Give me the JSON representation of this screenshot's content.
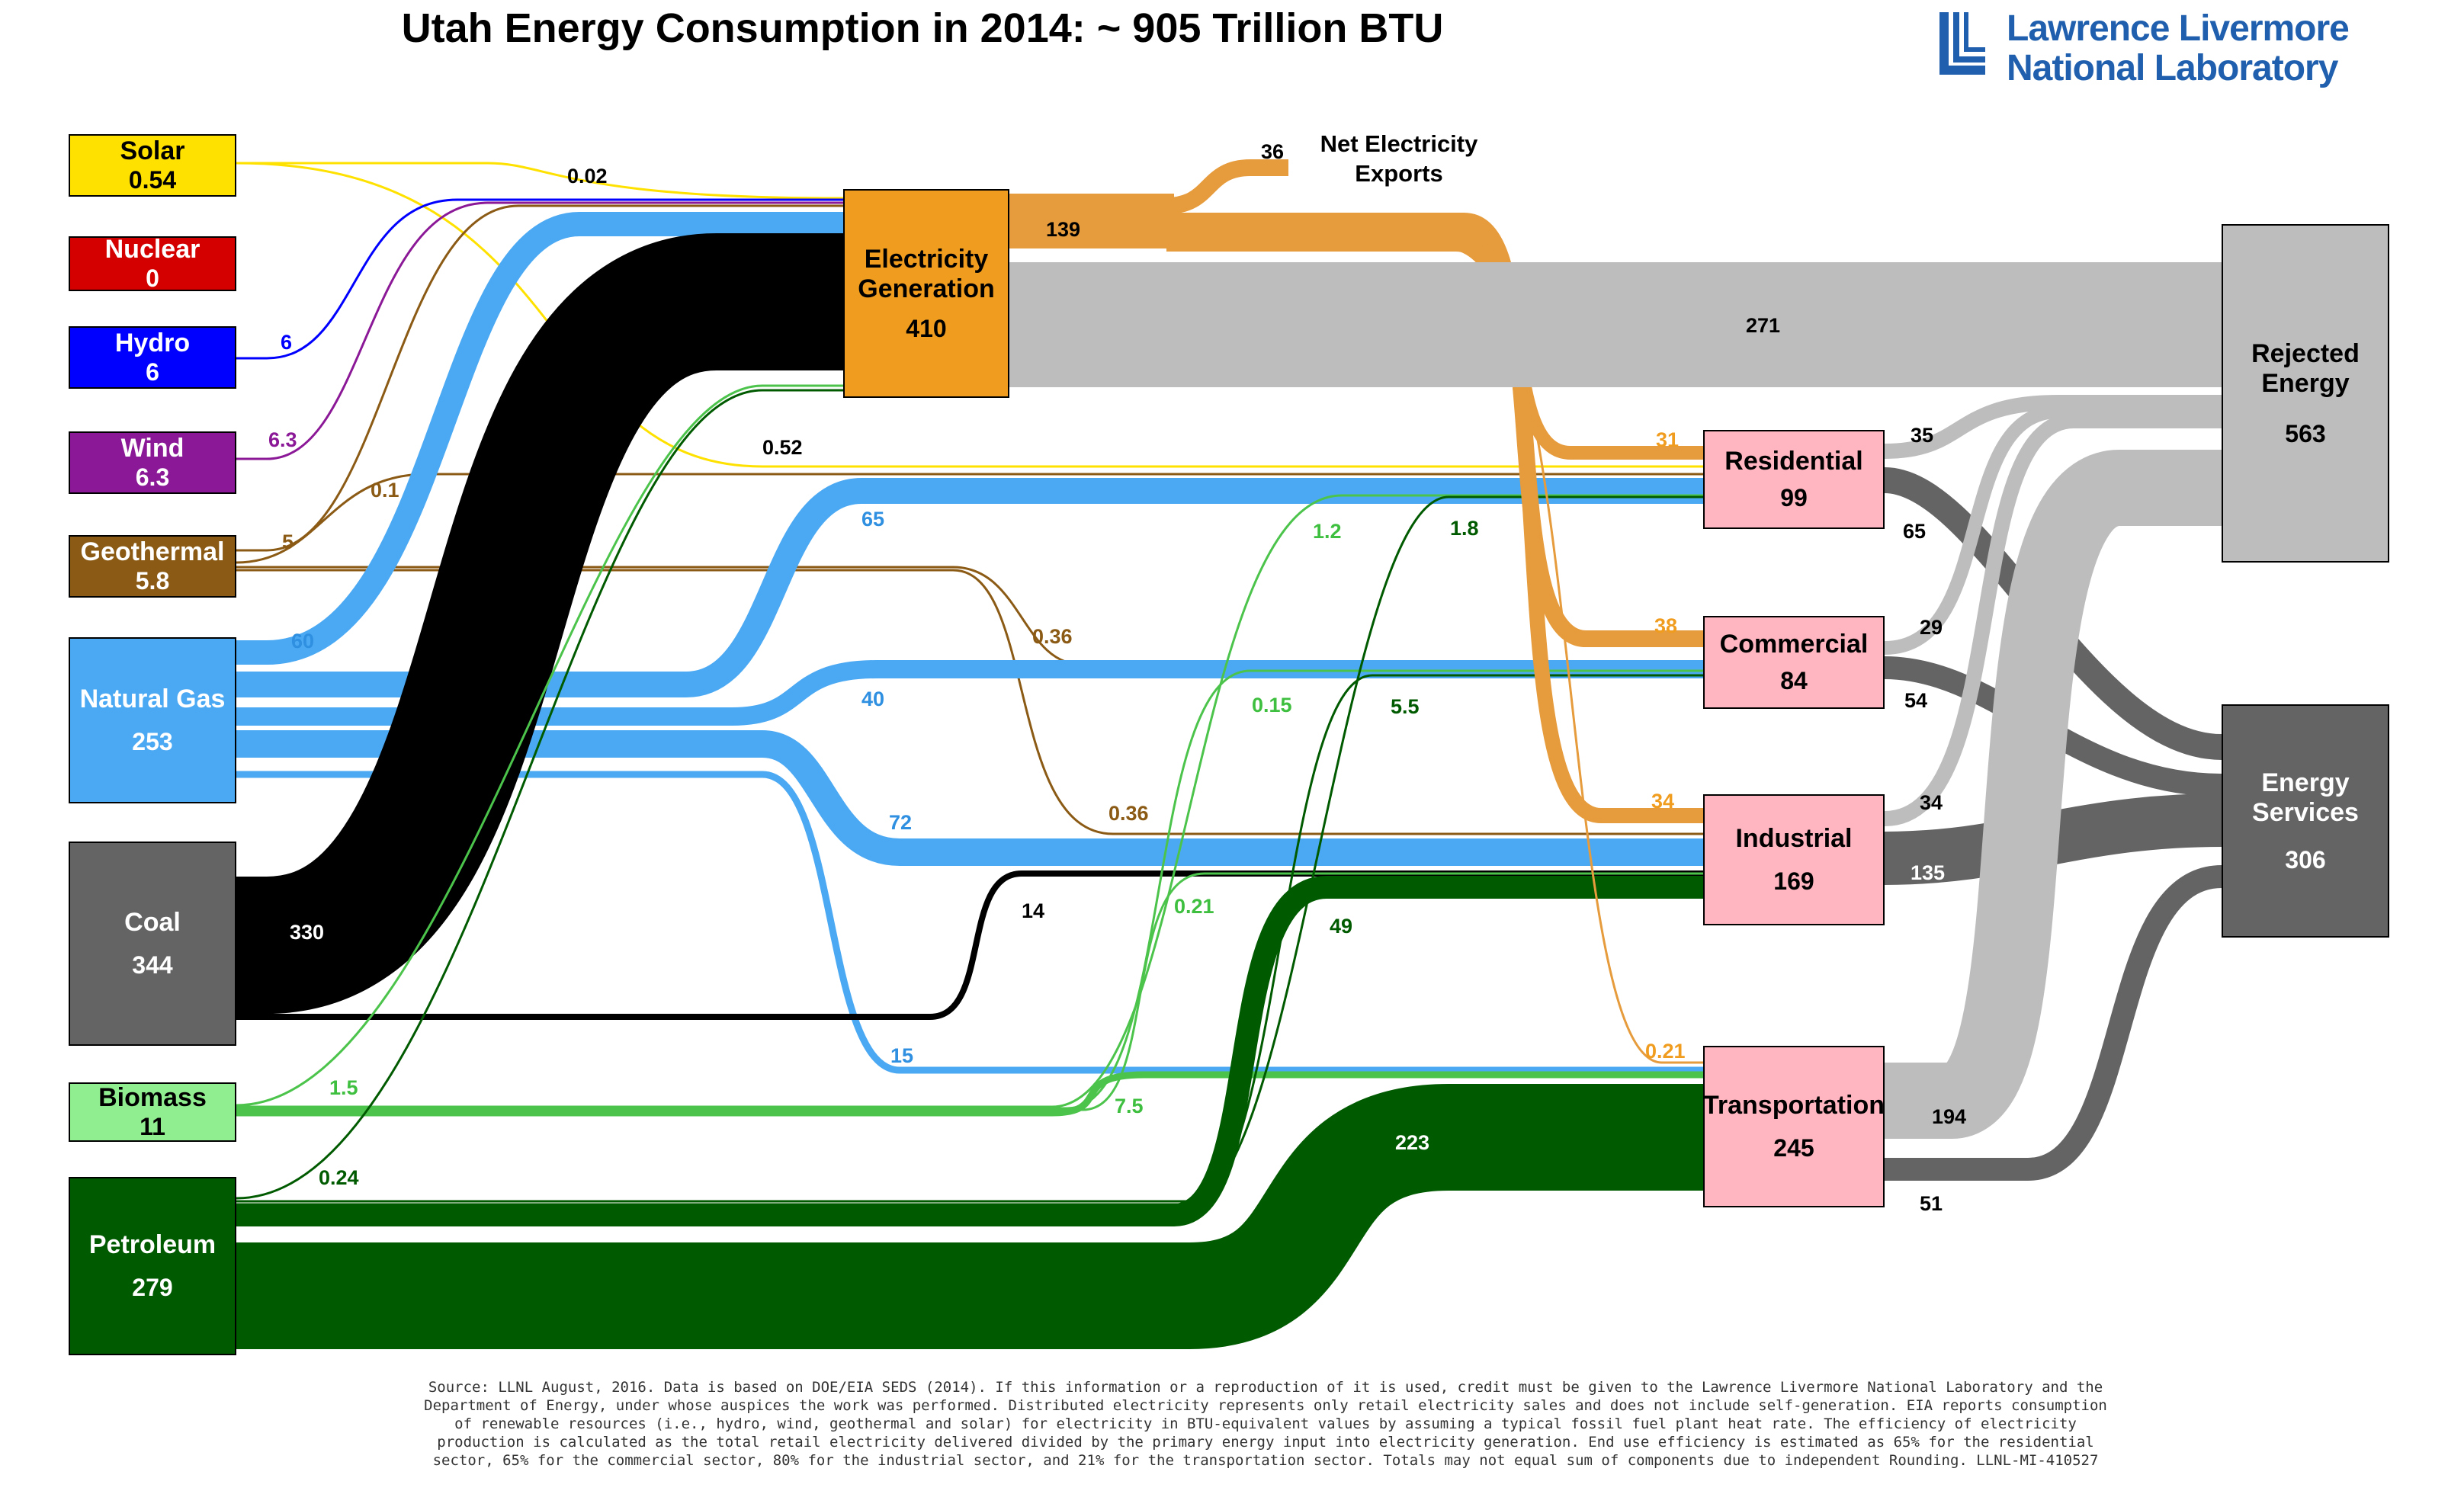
{
  "title": "Utah Energy Consumption in 2014: ~ 905 Trillion BTU",
  "logo": {
    "line1": "Lawrence Livermore",
    "line2": "National Laboratory",
    "color": "#1f5fae"
  },
  "sources": [
    {
      "id": "solar",
      "name": "Solar",
      "value": "0.54",
      "color": "#ffe100"
    },
    {
      "id": "nuclear",
      "name": "Nuclear",
      "value": "0",
      "color": "#d40000"
    },
    {
      "id": "hydro",
      "name": "Hydro",
      "value": "6",
      "color": "#0000ff"
    },
    {
      "id": "wind",
      "name": "Wind",
      "value": "6.3",
      "color": "#8b1896"
    },
    {
      "id": "geothermal",
      "name": "Geothermal",
      "value": "5.8",
      "color": "#8b5a14"
    },
    {
      "id": "natural-gas",
      "name": "Natural Gas",
      "value": "253",
      "color": "#4ba9f3"
    },
    {
      "id": "coal",
      "name": "Coal",
      "value": "344",
      "color": "#646464"
    },
    {
      "id": "biomass",
      "name": "Biomass",
      "value": "11",
      "color": "#90ee90"
    },
    {
      "id": "petroleum",
      "name": "Petroleum",
      "value": "279",
      "color": "#005a00"
    }
  ],
  "electricity": {
    "name": "Electricity Generation",
    "value": "410",
    "color": "#f09c1e"
  },
  "sectors": [
    {
      "id": "residential",
      "name": "Residential",
      "value": "99"
    },
    {
      "id": "commercial",
      "name": "Commercial",
      "value": "84"
    },
    {
      "id": "industrial",
      "name": "Industrial",
      "value": "169"
    },
    {
      "id": "transportation",
      "name": "Transportation",
      "value": "245"
    }
  ],
  "outputs": [
    {
      "id": "rejected",
      "name": "Rejected Energy",
      "value": "563",
      "color": "#bdbdbd"
    },
    {
      "id": "services",
      "name": "Energy Services",
      "value": "306",
      "color": "#646464"
    }
  ],
  "net_exports": {
    "label": "Net Electricity Exports",
    "value": "36"
  },
  "flows": [
    {
      "from": "Solar",
      "to": "Electricity Generation",
      "value": 0.02
    },
    {
      "from": "Solar",
      "to": "Residential",
      "value": 0.52
    },
    {
      "from": "Hydro",
      "to": "Electricity Generation",
      "value": 6
    },
    {
      "from": "Wind",
      "to": "Electricity Generation",
      "value": 6.3
    },
    {
      "from": "Geothermal",
      "to": "Electricity Generation",
      "value": 5
    },
    {
      "from": "Geothermal",
      "to": "Residential",
      "value": 0.1
    },
    {
      "from": "Geothermal",
      "to": "Commercial",
      "value": 0.36
    },
    {
      "from": "Geothermal",
      "to": "Industrial",
      "value": 0.36
    },
    {
      "from": "Natural Gas",
      "to": "Electricity Generation",
      "value": 60
    },
    {
      "from": "Natural Gas",
      "to": "Residential",
      "value": 65
    },
    {
      "from": "Natural Gas",
      "to": "Commercial",
      "value": 40
    },
    {
      "from": "Natural Gas",
      "to": "Industrial",
      "value": 72
    },
    {
      "from": "Natural Gas",
      "to": "Transportation",
      "value": 15
    },
    {
      "from": "Coal",
      "to": "Electricity Generation",
      "value": 330
    },
    {
      "from": "Coal",
      "to": "Industrial",
      "value": 14
    },
    {
      "from": "Biomass",
      "to": "Electricity Generation",
      "value": 1.5
    },
    {
      "from": "Biomass",
      "to": "Residential",
      "value": 1.2
    },
    {
      "from": "Biomass",
      "to": "Commercial",
      "value": 0.15
    },
    {
      "from": "Biomass",
      "to": "Industrial",
      "value": 0.21
    },
    {
      "from": "Biomass",
      "to": "Transportation",
      "value": 7.5
    },
    {
      "from": "Petroleum",
      "to": "Electricity Generation",
      "value": 0.24
    },
    {
      "from": "Petroleum",
      "to": "Residential",
      "value": 1.8
    },
    {
      "from": "Petroleum",
      "to": "Commercial",
      "value": 5.5
    },
    {
      "from": "Petroleum",
      "to": "Industrial",
      "value": 49
    },
    {
      "from": "Petroleum",
      "to": "Transportation",
      "value": 223
    },
    {
      "from": "Electricity Generation",
      "to": "Net Electricity Exports",
      "value": 36
    },
    {
      "from": "Electricity Generation",
      "to": "Residential",
      "value": 31
    },
    {
      "from": "Electricity Generation",
      "to": "Commercial",
      "value": 38
    },
    {
      "from": "Electricity Generation",
      "to": "Industrial",
      "value": 34
    },
    {
      "from": "Electricity Generation",
      "to": "Transportation",
      "value": 0.21
    },
    {
      "from": "Electricity Generation",
      "to": "Rejected Energy",
      "value": 271
    },
    {
      "from": "Residential",
      "to": "Rejected Energy",
      "value": 35
    },
    {
      "from": "Residential",
      "to": "Energy Services",
      "value": 65
    },
    {
      "from": "Commercial",
      "to": "Rejected Energy",
      "value": 29
    },
    {
      "from": "Commercial",
      "to": "Energy Services",
      "value": 54
    },
    {
      "from": "Industrial",
      "to": "Rejected Energy",
      "value": 34
    },
    {
      "from": "Industrial",
      "to": "Energy Services",
      "value": 135
    },
    {
      "from": "Transportation",
      "to": "Rejected Energy",
      "value": 194
    },
    {
      "from": "Transportation",
      "to": "Energy Services",
      "value": 51
    }
  ],
  "flow_labels": [
    {
      "id": "solar-elec",
      "text": "0.02"
    },
    {
      "id": "solar-res",
      "text": "0.52"
    },
    {
      "id": "hydro-elec",
      "text": "6"
    },
    {
      "id": "wind-elec",
      "text": "6.3"
    },
    {
      "id": "geo-elec",
      "text": "5"
    },
    {
      "id": "geo-res",
      "text": "0.1"
    },
    {
      "id": "geo-com",
      "text": "0.36"
    },
    {
      "id": "geo-ind",
      "text": "0.36"
    },
    {
      "id": "ng-elec",
      "text": "60"
    },
    {
      "id": "ng-res",
      "text": "65"
    },
    {
      "id": "ng-com",
      "text": "40"
    },
    {
      "id": "ng-ind",
      "text": "72"
    },
    {
      "id": "ng-trans",
      "text": "15"
    },
    {
      "id": "coal-elec",
      "text": "330"
    },
    {
      "id": "coal-ind",
      "text": "14"
    },
    {
      "id": "bio-elec",
      "text": "1.5"
    },
    {
      "id": "bio-res",
      "text": "1.2"
    },
    {
      "id": "bio-com",
      "text": "0.15"
    },
    {
      "id": "bio-ind",
      "text": "0.21"
    },
    {
      "id": "bio-trans",
      "text": "7.5"
    },
    {
      "id": "pet-elec",
      "text": "0.24"
    },
    {
      "id": "pet-res",
      "text": "1.8"
    },
    {
      "id": "pet-com",
      "text": "5.5"
    },
    {
      "id": "pet-ind",
      "text": "49"
    },
    {
      "id": "pet-trans",
      "text": "223"
    },
    {
      "id": "elec-out",
      "text": "139"
    },
    {
      "id": "elec-res",
      "text": "31"
    },
    {
      "id": "elec-com",
      "text": "38"
    },
    {
      "id": "elec-ind",
      "text": "34"
    },
    {
      "id": "elec-trans",
      "text": "0.21"
    },
    {
      "id": "elec-rej",
      "text": "271"
    },
    {
      "id": "res-rej",
      "text": "35"
    },
    {
      "id": "res-serv",
      "text": "65"
    },
    {
      "id": "com-rej",
      "text": "29"
    },
    {
      "id": "com-serv",
      "text": "54"
    },
    {
      "id": "ind-rej",
      "text": "34"
    },
    {
      "id": "ind-serv",
      "text": "135"
    },
    {
      "id": "trans-rej",
      "text": "194"
    },
    {
      "id": "trans-serv",
      "text": "51"
    }
  ],
  "footnote": [
    "Source: LLNL August, 2016. Data is based on DOE/EIA SEDS (2014). If this information or a reproduction of it is used, credit must be given to the Lawrence Livermore National Laboratory and the",
    "Department of Energy, under whose auspices the work was performed. Distributed electricity represents only retail electricity sales and does not include self-generation.  EIA reports consumption",
    "of renewable resources (i.e., hydro, wind, geothermal and solar) for electricity in BTU-equivalent values by assuming a typical fossil fuel plant heat rate.  The efficiency of electricity",
    "production is calculated as the total retail electricity delivered divided by the primary energy input into electricity generation.  End use efficiency is estimated as 65% for the residential",
    "sector, 65% for the commercial sector, 80% for the industrial sector, and 21% for the transportation sector.  Totals may not equal sum of components due to independent Rounding. LLNL-MI-410527"
  ]
}
